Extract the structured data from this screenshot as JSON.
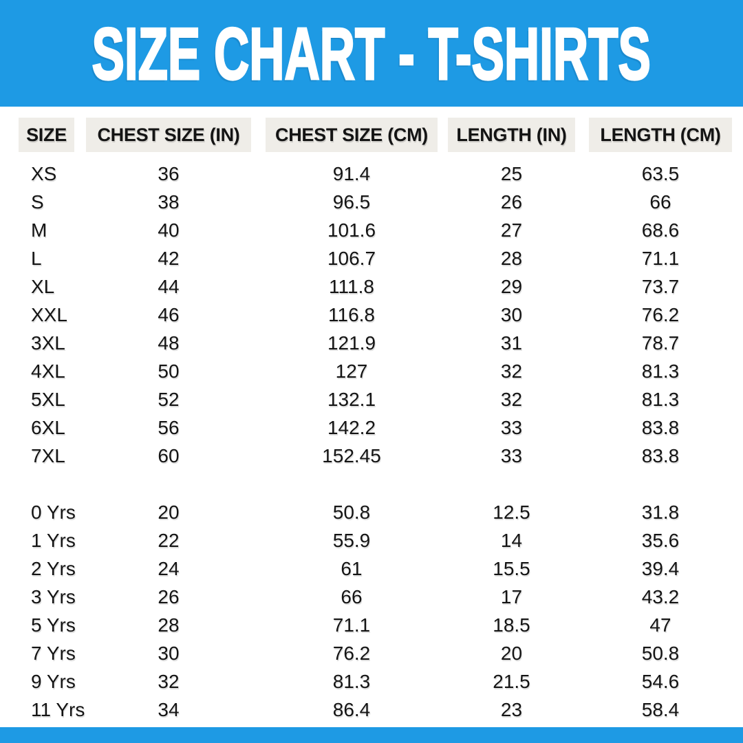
{
  "header": {
    "title": "SIZE CHART - T-SHIRTS"
  },
  "colors": {
    "accent": "#1E9AE4",
    "header_cell_bg": "#EFEDE8",
    "text_color": "#141414",
    "background": "#FFFFFF"
  },
  "chart_data": {
    "type": "table",
    "title": "SIZE CHART - T-SHIRTS",
    "columns": [
      "SIZE",
      "CHEST SIZE (IN)",
      "CHEST SIZE (CM)",
      "LENGTH (IN)",
      "LENGTH (CM)"
    ],
    "sections": [
      {
        "name": "adult-sizes",
        "rows": [
          [
            "XS",
            "36",
            "91.4",
            "25",
            "63.5"
          ],
          [
            "S",
            "38",
            "96.5",
            "26",
            "66"
          ],
          [
            "M",
            "40",
            "101.6",
            "27",
            "68.6"
          ],
          [
            "L",
            "42",
            "106.7",
            "28",
            "71.1"
          ],
          [
            "XL",
            "44",
            "111.8",
            "29",
            "73.7"
          ],
          [
            "XXL",
            "46",
            "116.8",
            "30",
            "76.2"
          ],
          [
            "3XL",
            "48",
            "121.9",
            "31",
            "78.7"
          ],
          [
            "4XL",
            "50",
            "127",
            "32",
            "81.3"
          ],
          [
            "5XL",
            "52",
            "132.1",
            "32",
            "81.3"
          ],
          [
            "6XL",
            "56",
            "142.2",
            "33",
            "83.8"
          ],
          [
            "7XL",
            "60",
            "152.45",
            "33",
            "83.8"
          ]
        ]
      },
      {
        "name": "kids-sizes",
        "rows": [
          [
            "0 Yrs",
            "20",
            "50.8",
            "12.5",
            "31.8"
          ],
          [
            "1 Yrs",
            "22",
            "55.9",
            "14",
            "35.6"
          ],
          [
            "2 Yrs",
            "24",
            "61",
            "15.5",
            "39.4"
          ],
          [
            "3 Yrs",
            "26",
            "66",
            "17",
            "43.2"
          ],
          [
            "5 Yrs",
            "28",
            "71.1",
            "18.5",
            "47"
          ],
          [
            "7 Yrs",
            "30",
            "76.2",
            "20",
            "50.8"
          ],
          [
            "9 Yrs",
            "32",
            "81.3",
            "21.5",
            "54.6"
          ],
          [
            "11 Yrs",
            "34",
            "86.4",
            "23",
            "58.4"
          ]
        ]
      }
    ]
  }
}
